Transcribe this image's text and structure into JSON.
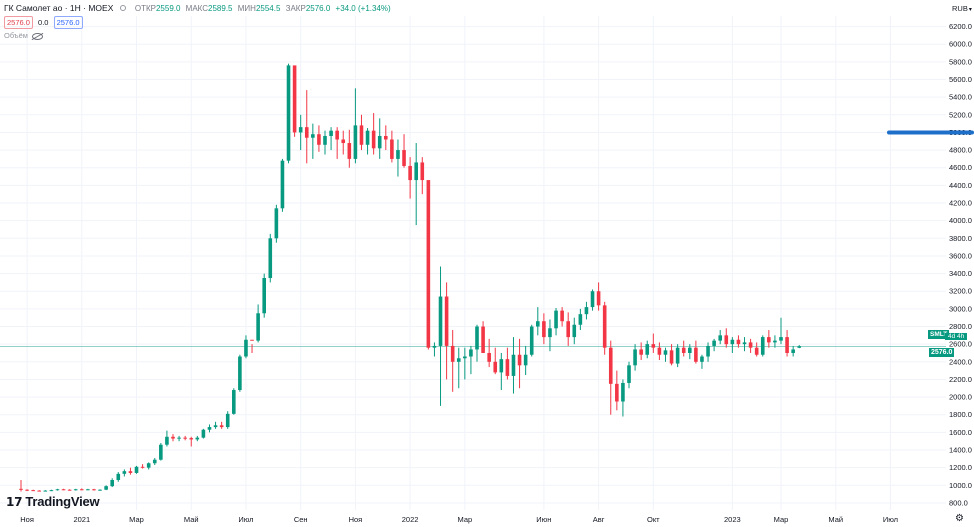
{
  "legend": {
    "title": "ГК Самолет ао · 1Н · MOEX",
    "open_label": "ОТКР",
    "open": "2559.0",
    "high_label": "МАКС",
    "high": "2589.5",
    "low_label": "МИН",
    "low": "2554.5",
    "close_label": "ЗАКР",
    "close": "2576.0",
    "change": "+34.0 (+1.34%)",
    "sell": "2576.0",
    "spread": "0.0",
    "buy": "2576.0",
    "volume_label": "Объём"
  },
  "currency": "RUB",
  "symbol_tag": "SMLT",
  "price_tag": "2576.0",
  "countdown": "4d 4h",
  "brand": "TradingView",
  "colors": {
    "up": "#089981",
    "down": "#f23645",
    "line": "#1e6fc9",
    "grid": "#f0f3fa"
  },
  "icons": {
    "settings": "gear-icon",
    "visibility": "eye-off-icon",
    "brand": "tradingview-logo-icon"
  },
  "chart_data": {
    "type": "candlestick",
    "title": "ГК Самолет ао · 1Н · MOEX",
    "y_ticks": [
      800,
      1000,
      1200,
      1400,
      1600,
      1800,
      2000,
      2200,
      2400,
      2600,
      2800,
      3000,
      3200,
      3400,
      3600,
      3800,
      4000,
      4200,
      4400,
      4600,
      4800,
      5000,
      5200,
      5400,
      5600,
      5800,
      6000,
      6200
    ],
    "ylim": [
      720,
      6320
    ],
    "x_ticks": [
      "Ноя",
      "2021",
      "Мар",
      "Май",
      "Июл",
      "Сен",
      "Ноя",
      "2022",
      "Мар",
      "Июн",
      "Авг",
      "Окт",
      "2023",
      "Мар",
      "Май",
      "Июл"
    ],
    "x_tick_week_index": [
      1,
      10,
      19,
      28,
      37,
      46,
      55,
      64,
      73,
      86,
      95,
      104,
      117,
      125,
      134,
      143
    ],
    "current_price": 2576.0,
    "horizontal_line": 5000,
    "candles_ohlc": [
      [
        960,
        1060,
        930,
        950
      ],
      [
        950,
        955,
        935,
        945
      ],
      [
        945,
        950,
        935,
        940
      ],
      [
        940,
        945,
        930,
        935
      ],
      [
        935,
        945,
        930,
        940
      ],
      [
        940,
        950,
        935,
        945
      ],
      [
        945,
        960,
        940,
        955
      ],
      [
        955,
        960,
        945,
        950
      ],
      [
        950,
        955,
        940,
        945
      ],
      [
        945,
        960,
        940,
        955
      ],
      [
        955,
        965,
        945,
        950
      ],
      [
        950,
        960,
        945,
        955
      ],
      [
        955,
        960,
        940,
        945
      ],
      [
        945,
        955,
        940,
        950
      ],
      [
        950,
        1000,
        945,
        990
      ],
      [
        990,
        1080,
        980,
        1060
      ],
      [
        1060,
        1150,
        1040,
        1130
      ],
      [
        1130,
        1180,
        1100,
        1160
      ],
      [
        1160,
        1200,
        1120,
        1140
      ],
      [
        1140,
        1220,
        1130,
        1210
      ],
      [
        1210,
        1240,
        1190,
        1200
      ],
      [
        1200,
        1260,
        1180,
        1250
      ],
      [
        1250,
        1310,
        1230,
        1290
      ],
      [
        1290,
        1480,
        1280,
        1460
      ],
      [
        1460,
        1620,
        1440,
        1550
      ],
      [
        1550,
        1580,
        1500,
        1530
      ],
      [
        1530,
        1560,
        1500,
        1540
      ],
      [
        1540,
        1560,
        1510,
        1535
      ],
      [
        1535,
        1550,
        1440,
        1520
      ],
      [
        1520,
        1560,
        1500,
        1540
      ],
      [
        1540,
        1640,
        1530,
        1630
      ],
      [
        1630,
        1690,
        1600,
        1660
      ],
      [
        1660,
        1720,
        1640,
        1680
      ],
      [
        1680,
        1720,
        1640,
        1660
      ],
      [
        1660,
        1840,
        1640,
        1810
      ],
      [
        1810,
        2100,
        1800,
        2080
      ],
      [
        2080,
        2480,
        2060,
        2460
      ],
      [
        2460,
        2700,
        2440,
        2650
      ],
      [
        2650,
        2600,
        2500,
        2640
      ],
      [
        2640,
        3050,
        2620,
        2950
      ],
      [
        2950,
        3400,
        2900,
        3350
      ],
      [
        3350,
        3850,
        3300,
        3800
      ],
      [
        3800,
        4180,
        3750,
        4140
      ],
      [
        4140,
        4700,
        4100,
        4680
      ],
      [
        4680,
        5780,
        4650,
        5760
      ],
      [
        5760,
        5660,
        4950,
        5000
      ],
      [
        5000,
        5200,
        4800,
        5060
      ],
      [
        5060,
        5480,
        4650,
        4940
      ],
      [
        4940,
        5100,
        4700,
        4980
      ],
      [
        4980,
        5080,
        4780,
        4860
      ],
      [
        4860,
        5020,
        4750,
        4960
      ],
      [
        4960,
        5060,
        4800,
        5020
      ],
      [
        5020,
        5060,
        4700,
        4920
      ],
      [
        4920,
        5020,
        4750,
        4880
      ],
      [
        4880,
        5030,
        4600,
        4700
      ],
      [
        4700,
        5500,
        4650,
        5080
      ],
      [
        5080,
        5200,
        4800,
        4860
      ],
      [
        4860,
        5050,
        4750,
        5020
      ],
      [
        5020,
        5220,
        4750,
        4820
      ],
      [
        4820,
        5160,
        4700,
        4960
      ],
      [
        4960,
        5080,
        4800,
        4920
      ],
      [
        4920,
        5020,
        4660,
        4700
      ],
      [
        4700,
        4920,
        4500,
        4800
      ],
      [
        4800,
        4980,
        4600,
        4620
      ],
      [
        4620,
        4720,
        4250,
        4460
      ],
      [
        4460,
        4880,
        3950,
        4660
      ],
      [
        4660,
        4720,
        4300,
        4460
      ],
      [
        4460,
        4450,
        2540,
        2560
      ],
      [
        2560,
        2620,
        2460,
        2580
      ],
      [
        2580,
        3480,
        1900,
        3140
      ],
      [
        3140,
        3300,
        2200,
        2580
      ],
      [
        2580,
        2760,
        2060,
        2400
      ],
      [
        2400,
        2560,
        2100,
        2440
      ],
      [
        2440,
        2560,
        2200,
        2460
      ],
      [
        2460,
        2580,
        2260,
        2540
      ],
      [
        2540,
        2820,
        2400,
        2800
      ],
      [
        2800,
        2860,
        2500,
        2500
      ],
      [
        2500,
        2660,
        2340,
        2400
      ],
      [
        2400,
        2560,
        2260,
        2280
      ],
      [
        2280,
        2500,
        2080,
        2430
      ],
      [
        2430,
        2560,
        2200,
        2240
      ],
      [
        2240,
        2680,
        2040,
        2480
      ],
      [
        2480,
        2660,
        2100,
        2360
      ],
      [
        2360,
        2580,
        2250,
        2480
      ],
      [
        2480,
        2820,
        2460,
        2800
      ],
      [
        2800,
        3020,
        2700,
        2860
      ],
      [
        2860,
        2950,
        2600,
        2680
      ],
      [
        2680,
        2880,
        2520,
        2780
      ],
      [
        2780,
        3010,
        2700,
        2980
      ],
      [
        2980,
        3020,
        2800,
        2860
      ],
      [
        2860,
        2960,
        2580,
        2680
      ],
      [
        2680,
        2900,
        2600,
        2820
      ],
      [
        2820,
        3000,
        2760,
        2940
      ],
      [
        2940,
        3080,
        2880,
        3020
      ],
      [
        3020,
        3220,
        2980,
        3200
      ],
      [
        3200,
        3300,
        2980,
        3040
      ],
      [
        3040,
        3080,
        2480,
        2560
      ],
      [
        2560,
        2640,
        1800,
        2150
      ],
      [
        2150,
        2300,
        1850,
        1950
      ],
      [
        1950,
        2200,
        1780,
        2160
      ],
      [
        2160,
        2400,
        2100,
        2360
      ],
      [
        2360,
        2600,
        2300,
        2540
      ],
      [
        2540,
        2620,
        2420,
        2480
      ],
      [
        2480,
        2640,
        2440,
        2600
      ],
      [
        2600,
        2720,
        2500,
        2560
      ],
      [
        2560,
        2620,
        2420,
        2480
      ],
      [
        2480,
        2560,
        2400,
        2530
      ],
      [
        2530,
        2600,
        2360,
        2380
      ],
      [
        2380,
        2600,
        2340,
        2560
      ],
      [
        2560,
        2640,
        2460,
        2500
      ],
      [
        2500,
        2600,
        2430,
        2560
      ],
      [
        2560,
        2640,
        2380,
        2400
      ],
      [
        2400,
        2480,
        2320,
        2460
      ],
      [
        2460,
        2620,
        2400,
        2580
      ],
      [
        2580,
        2660,
        2520,
        2640
      ],
      [
        2640,
        2760,
        2600,
        2700
      ],
      [
        2700,
        2780,
        2560,
        2600
      ],
      [
        2600,
        2680,
        2500,
        2650
      ],
      [
        2650,
        2700,
        2560,
        2600
      ],
      [
        2600,
        2680,
        2520,
        2620
      ],
      [
        2620,
        2660,
        2500,
        2560
      ],
      [
        2560,
        2620,
        2460,
        2480
      ],
      [
        2480,
        2700,
        2460,
        2680
      ],
      [
        2680,
        2760,
        2560,
        2620
      ],
      [
        2620,
        2700,
        2560,
        2640
      ],
      [
        2640,
        2900,
        2600,
        2680
      ],
      [
        2680,
        2760,
        2460,
        2500
      ],
      [
        2500,
        2580,
        2460,
        2540
      ],
      [
        2559,
        2589.5,
        2554.5,
        2576
      ]
    ]
  }
}
